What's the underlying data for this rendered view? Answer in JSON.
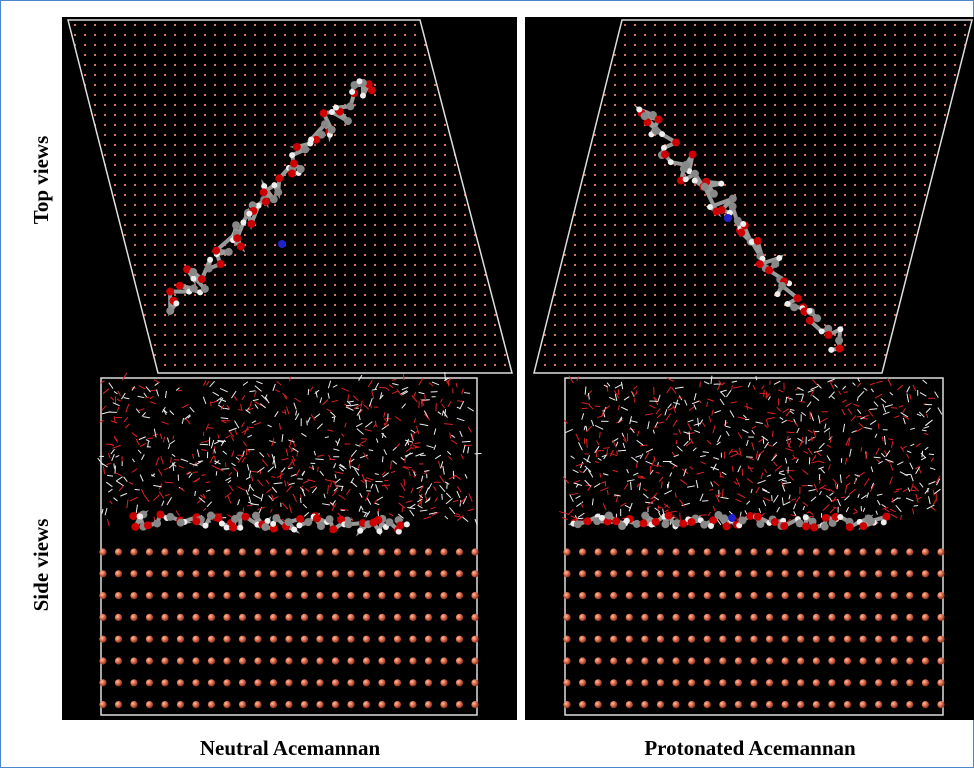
{
  "row_labels": [
    "Top views",
    "Side views"
  ],
  "column_labels": [
    "Neutral Acemannan",
    "Protonated Acemannan"
  ]
}
